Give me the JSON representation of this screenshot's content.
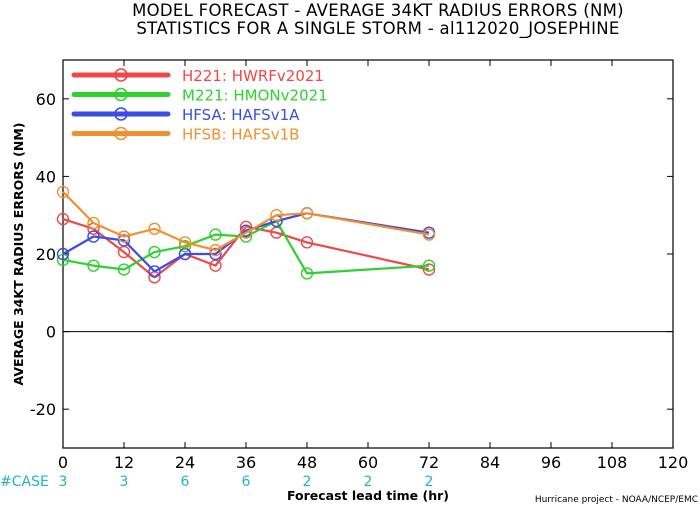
{
  "chart_data": {
    "type": "line",
    "title": [
      "MODEL FORECAST - AVERAGE 34KT RADIUS ERRORS (NM)",
      "STATISTICS FOR A SINGLE STORM - al112020_JOSEPHINE"
    ],
    "xlabel": "Forecast lead time (hr)",
    "ylabel": "AVERAGE 34KT RADIUS ERRORS (NM)",
    "xlim": [
      0,
      120
    ],
    "ylim": [
      -30,
      70
    ],
    "x_ticks": [
      0,
      12,
      24,
      36,
      48,
      60,
      72,
      84,
      96,
      108,
      120
    ],
    "y_ticks": [
      -20,
      0,
      20,
      40,
      60
    ],
    "zero_line": true,
    "legend_position": "top-left",
    "series": [
      {
        "name": "H221: HWRFv2021",
        "color": "#f04848",
        "x": [
          0,
          6,
          12,
          18,
          24,
          30,
          36,
          42,
          48,
          72
        ],
        "values": [
          29,
          26.5,
          20.5,
          14,
          20,
          17,
          27,
          25.5,
          23,
          16
        ]
      },
      {
        "name": "M221: HMONv2021",
        "color": "#2fd12f",
        "x": [
          0,
          6,
          12,
          18,
          24,
          30,
          36,
          42,
          48,
          72
        ],
        "values": [
          18.5,
          17,
          16,
          20.5,
          22,
          25,
          24.5,
          28.5,
          15,
          17
        ]
      },
      {
        "name": "HFSA: HAFSv1A",
        "color": "#3b4be8",
        "x": [
          0,
          6,
          12,
          18,
          24,
          30,
          36,
          42,
          48,
          72
        ],
        "values": [
          20,
          24.5,
          23.5,
          15.5,
          20,
          20,
          26,
          28.5,
          30.5,
          25.5
        ]
      },
      {
        "name": "HFSB: HAFSv1B",
        "color": "#f0902e",
        "x": [
          0,
          6,
          12,
          18,
          24,
          30,
          36,
          42,
          48,
          72
        ],
        "values": [
          36,
          28,
          24.5,
          26.5,
          23,
          21,
          25.5,
          30,
          30.5,
          25
        ]
      }
    ],
    "case_label": "#CASE",
    "cases": [
      {
        "x": 0,
        "count": "3"
      },
      {
        "x": 12,
        "count": "3"
      },
      {
        "x": 24,
        "count": "6"
      },
      {
        "x": 36,
        "count": "6"
      },
      {
        "x": 48,
        "count": "2"
      },
      {
        "x": 60,
        "count": "2"
      },
      {
        "x": 72,
        "count": "2"
      }
    ],
    "credit": "Hurricane project - NOAA/NCEP/EMC"
  }
}
